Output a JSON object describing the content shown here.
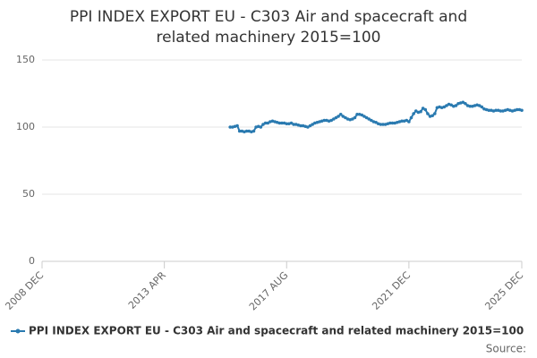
{
  "chart_data": {
    "type": "line",
    "title": [
      "PPI INDEX EXPORT EU - C303 Air and spacecraft and",
      "related machinery 2015=100"
    ],
    "xlim": [
      "2008 DEC",
      "2025 DEC"
    ],
    "xticks": [
      "2008 DEC",
      "2013 APR",
      "2017 AUG",
      "2021 DEC",
      "2025 DEC"
    ],
    "ylim": [
      0,
      150
    ],
    "yticks": [
      0,
      50,
      100,
      150
    ],
    "grid": true,
    "categories": [
      "2015 AUG",
      "2015 SEP",
      "2015 OCT",
      "2015 NOV",
      "2015 DEC",
      "2016 JAN",
      "2016 FEB",
      "2016 MAR",
      "2016 APR",
      "2016 MAY",
      "2016 JUN",
      "2016 JUL",
      "2016 AUG",
      "2016 SEP",
      "2016 OCT",
      "2016 NOV",
      "2016 DEC",
      "2017 JAN",
      "2017 FEB",
      "2017 MAR",
      "2017 APR",
      "2017 MAY",
      "2017 JUN",
      "2017 JUL",
      "2017 AUG",
      "2017 SEP",
      "2017 OCT",
      "2017 NOV",
      "2017 DEC",
      "2018 JAN",
      "2018 FEB",
      "2018 MAR",
      "2018 APR",
      "2018 MAY",
      "2018 JUN",
      "2018 JUL",
      "2018 AUG",
      "2018 SEP",
      "2018 OCT",
      "2018 NOV",
      "2018 DEC",
      "2019 JAN",
      "2019 FEB",
      "2019 MAR",
      "2019 APR",
      "2019 MAY",
      "2019 JUN",
      "2019 JUL",
      "2019 AUG",
      "2019 SEP",
      "2019 OCT",
      "2019 NOV",
      "2019 DEC",
      "2020 JAN",
      "2020 FEB",
      "2020 MAR",
      "2020 APR",
      "2020 MAY",
      "2020 JUN",
      "2020 JUL",
      "2020 AUG",
      "2020 SEP",
      "2020 OCT",
      "2020 NOV",
      "2020 DEC",
      "2021 JAN",
      "2021 FEB",
      "2021 MAR",
      "2021 APR",
      "2021 MAY",
      "2021 JUN",
      "2021 JUL",
      "2021 AUG",
      "2021 SEP",
      "2021 OCT",
      "2021 NOV",
      "2021 DEC",
      "2022 JAN",
      "2022 FEB",
      "2022 MAR",
      "2022 APR",
      "2022 MAY",
      "2022 JUN",
      "2022 JUL",
      "2022 AUG",
      "2022 SEP",
      "2022 OCT",
      "2022 NOV",
      "2022 DEC",
      "2023 JAN",
      "2023 FEB",
      "2023 MAR",
      "2023 APR",
      "2023 MAY",
      "2023 JUN",
      "2023 JUL",
      "2023 AUG",
      "2023 SEP",
      "2023 OCT",
      "2023 NOV",
      "2023 DEC",
      "2024 JAN",
      "2024 FEB",
      "2024 MAR",
      "2024 APR",
      "2024 MAY",
      "2024 JUN",
      "2024 JUL",
      "2024 AUG",
      "2024 SEP",
      "2024 OCT",
      "2024 NOV",
      "2024 DEC",
      "2025 JAN",
      "2025 FEB",
      "2025 MAR",
      "2025 APR",
      "2025 MAY",
      "2025 JUN",
      "2025 JUL",
      "2025 AUG",
      "2025 SEP",
      "2025 OCT",
      "2025 NOV",
      "2025 DEC"
    ],
    "series": [
      {
        "name": "PPI INDEX EXPORT EU - C303 Air and spacecraft and related machinery 2015=100",
        "color": "#2a7ab0",
        "values": [
          100,
          100,
          100.5,
          101,
          97,
          97,
          96.5,
          97,
          97,
          96.5,
          97,
          100,
          100.5,
          100,
          102,
          103,
          103,
          104,
          104.5,
          104,
          103.5,
          103,
          103,
          103,
          102.5,
          102.5,
          103,
          102,
          102,
          101.5,
          101,
          101,
          100.5,
          100,
          101,
          102,
          103,
          103.5,
          104,
          104.5,
          105,
          105,
          104.5,
          105,
          106,
          107,
          108,
          109.5,
          108,
          107,
          106,
          105.5,
          106,
          107,
          109.5,
          109.5,
          109,
          108,
          107,
          106,
          105,
          104,
          103.5,
          102.5,
          102,
          102,
          102,
          102.5,
          103,
          103,
          103,
          103.5,
          104,
          104.5,
          104.5,
          105,
          104,
          107,
          110,
          112,
          111,
          111.5,
          114,
          113,
          110,
          108,
          108.5,
          110,
          114.5,
          115,
          114.5,
          115,
          116,
          117,
          116.5,
          115.5,
          116,
          117.5,
          118,
          118.5,
          117.5,
          116,
          115.5,
          115.5,
          116,
          116.5,
          116,
          115,
          113.5,
          113,
          112.5,
          112.5,
          112,
          112.5,
          112.5,
          112,
          112,
          112.5,
          113,
          112.5,
          112,
          112.5,
          113,
          113,
          112.5
        ]
      }
    ],
    "source": "Source:"
  }
}
